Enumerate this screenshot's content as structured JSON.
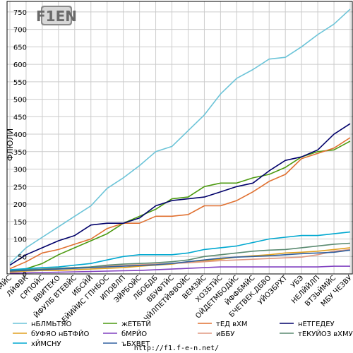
{
  "logo": {
    "text": "F1EN"
  },
  "footer": {
    "url": "http://f1.f-e-n.net/"
  },
  "colors": {
    "grid": "#cccccc",
    "axis": "#000000",
    "frame": "#000000"
  },
  "chart_data": {
    "type": "line",
    "title": "",
    "xlabel": "",
    "ylabel": "ФЛЮЛИ",
    "ylim": [
      0,
      780
    ],
    "yticks": [
      0,
      50,
      100,
      150,
      200,
      250,
      300,
      350,
      400,
      450,
      500,
      550,
      600,
      650,
      700,
      750
    ],
    "grid": true,
    "legend_position": "bottom",
    "categories": [
      "ЮФТВМЙС",
      "ЛЙФВК",
      "СРПОЙС",
      "ВВИТЕКО",
      "ЙФУЛБ ВТЕВЙС",
      "ИБСЙЙ",
      "ЕЙИЙИС ГПНБОС",
      "ИПОВЛП",
      "ЭЙРБОЙС",
      "ЛБОБДБ",
      "ВБУФТЙС",
      "ЧЙЛПЕТЙФВОЙС",
      "ВЕМЗЙС",
      "ХОЗБТЙС",
      "ОЙДЕТМБОДЙС",
      "ЙФФБМЙС",
      "БЧЕТВЕК.ДБВО",
      "УЙОЗБРХТ",
      "УБЭ",
      "НЕЛЙЙЛП",
      "ВТЗЬЙМЙС",
      "МБУ ЧЕЗВУ"
    ],
    "series": [
      {
        "name": "нБЛМЬТЯО",
        "color": "#6cc4d8",
        "values": [
          30,
          75,
          105,
          135,
          165,
          195,
          245,
          275,
          310,
          350,
          365,
          410,
          455,
          515,
          560,
          585,
          615,
          620,
          650,
          685,
          715,
          758
        ]
      },
      {
        "name": "жЕТБТЙ",
        "color": "#4c9a10",
        "values": [
          5,
          15,
          30,
          55,
          75,
          95,
          115,
          145,
          165,
          185,
          215,
          220,
          250,
          260,
          260,
          275,
          285,
          305,
          335,
          350,
          355,
          380
        ]
      },
      {
        "name": "тЕД вХМ",
        "color": "#e07030",
        "values": [
          15,
          35,
          60,
          70,
          85,
          100,
          130,
          145,
          145,
          165,
          165,
          170,
          195,
          195,
          210,
          235,
          265,
          285,
          330,
          345,
          360,
          390
        ]
      },
      {
        "name": "нЕТГЕДЕУ",
        "color": "#00006a",
        "values": [
          25,
          55,
          75,
          95,
          110,
          140,
          145,
          145,
          160,
          195,
          210,
          215,
          220,
          235,
          250,
          260,
          295,
          325,
          335,
          355,
          400,
          430
        ]
      },
      {
        "name": "бУФЯО нБТФЙО",
        "color": "#e0a020",
        "values": [
          5,
          8,
          10,
          10,
          12,
          14,
          16,
          18,
          22,
          25,
          28,
          35,
          38,
          42,
          48,
          52,
          55,
          60,
          62,
          65,
          70,
          75
        ]
      },
      {
        "name": "бМРЙО",
        "color": "#8040c0",
        "values": [
          2,
          3,
          4,
          5,
          6,
          7,
          8,
          9,
          10,
          12,
          14,
          16,
          18,
          20,
          20,
          20,
          20,
          20,
          20,
          20,
          22,
          22
        ]
      },
      {
        "name": "иББУ",
        "color": "#e09880",
        "values": [
          10,
          12,
          14,
          16,
          18,
          20,
          22,
          24,
          26,
          28,
          30,
          32,
          35,
          38,
          40,
          42,
          44,
          46,
          48,
          55,
          65,
          70
        ]
      },
      {
        "name": "тЕКУЙОЗ вХМУ",
        "color": "#5a8a70",
        "values": [
          10,
          12,
          14,
          16,
          18,
          20,
          25,
          28,
          30,
          32,
          35,
          40,
          50,
          55,
          60,
          65,
          68,
          70,
          75,
          80,
          85,
          88
        ]
      },
      {
        "name": "хЙМСНУ",
        "color": "#00a8d0",
        "values": [
          12,
          15,
          18,
          20,
          25,
          30,
          40,
          50,
          55,
          55,
          55,
          60,
          70,
          75,
          80,
          90,
          100,
          105,
          110,
          110,
          115,
          120
        ]
      },
      {
        "name": "ъБХВЕТ",
        "color": "#3060a0",
        "values": [
          8,
          10,
          12,
          14,
          16,
          18,
          20,
          22,
          24,
          26,
          30,
          35,
          40,
          45,
          48,
          50,
          52,
          55,
          58,
          60,
          62,
          68
        ]
      }
    ]
  }
}
